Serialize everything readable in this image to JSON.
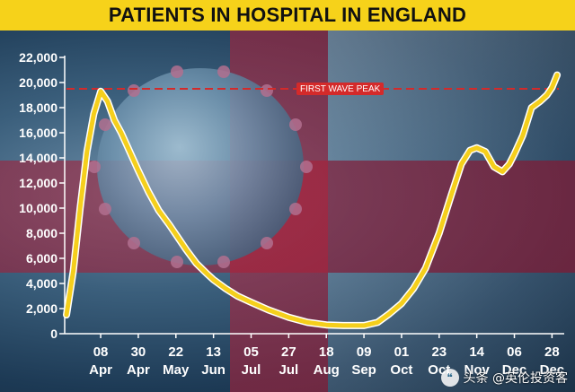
{
  "title": "PATIENTS IN HOSPITAL IN ENGLAND",
  "watermark": {
    "text": "头条 @英伦投资客",
    "icon": "speech-bubble-icon"
  },
  "colors": {
    "title_bg": "#f6d21a",
    "line": "#f5cf1c",
    "line_outline": "#ffffff",
    "peak_line": "#d42a2a",
    "tick_text": "#ffffff"
  },
  "chart_data": {
    "type": "line",
    "title": "PATIENTS IN HOSPITAL IN ENGLAND",
    "ylim": [
      0,
      22000
    ],
    "yticks": [
      0,
      2000,
      4000,
      6000,
      8000,
      10000,
      12000,
      14000,
      16000,
      18000,
      20000,
      22000
    ],
    "ytick_labels": [
      "0",
      "2,000",
      "4,000",
      "6,000",
      "8,000",
      "10,000",
      "12,000",
      "14,000",
      "16,000",
      "18,000",
      "20,000",
      "22,000"
    ],
    "xlim": [
      "2020-03-19",
      "2021-01-01"
    ],
    "xticks": [
      {
        "date": "2020-04-08",
        "day": "08",
        "month": "Apr"
      },
      {
        "date": "2020-04-30",
        "day": "30",
        "month": "Apr"
      },
      {
        "date": "2020-05-22",
        "day": "22",
        "month": "May"
      },
      {
        "date": "2020-06-13",
        "day": "13",
        "month": "Jun"
      },
      {
        "date": "2020-07-05",
        "day": "05",
        "month": "Jul"
      },
      {
        "date": "2020-07-27",
        "day": "27",
        "month": "Jul"
      },
      {
        "date": "2020-08-18",
        "day": "18",
        "month": "Aug"
      },
      {
        "date": "2020-09-09",
        "day": "09",
        "month": "Sep"
      },
      {
        "date": "2020-10-01",
        "day": "01",
        "month": "Oct"
      },
      {
        "date": "2020-10-23",
        "day": "23",
        "month": "Oct"
      },
      {
        "date": "2020-11-14",
        "day": "14",
        "month": "Nov"
      },
      {
        "date": "2020-12-06",
        "day": "06",
        "month": "Dec"
      },
      {
        "date": "2020-12-28",
        "day": "28",
        "month": "Dec"
      }
    ],
    "grid": false,
    "reference_line": {
      "label": "FIRST WAVE PEAK",
      "value": 19500
    },
    "series": [
      {
        "x": [
          "2020-03-19",
          "2020-03-23",
          "2020-03-27",
          "2020-03-31",
          "2020-04-04",
          "2020-04-08",
          "2020-04-12",
          "2020-04-16",
          "2020-04-20",
          "2020-04-25",
          "2020-04-30",
          "2020-05-06",
          "2020-05-12",
          "2020-05-18",
          "2020-05-22",
          "2020-05-28",
          "2020-06-03",
          "2020-06-09",
          "2020-06-13",
          "2020-06-20",
          "2020-06-27",
          "2020-07-05",
          "2020-07-15",
          "2020-07-27",
          "2020-08-07",
          "2020-08-18",
          "2020-08-28",
          "2020-09-09",
          "2020-09-17",
          "2020-09-24",
          "2020-10-01",
          "2020-10-08",
          "2020-10-15",
          "2020-10-23",
          "2020-10-30",
          "2020-11-05",
          "2020-11-10",
          "2020-11-14",
          "2020-11-19",
          "2020-11-24",
          "2020-11-29",
          "2020-12-03",
          "2020-12-06",
          "2020-12-11",
          "2020-12-16",
          "2020-12-21",
          "2020-12-25",
          "2020-12-28",
          "2020-12-31"
        ],
        "y": [
          1500,
          5000,
          10000,
          14500,
          17500,
          19300,
          18500,
          17000,
          16000,
          14500,
          13000,
          11300,
          9800,
          8700,
          7900,
          6700,
          5600,
          4800,
          4300,
          3600,
          3000,
          2500,
          1900,
          1300,
          900,
          700,
          650,
          650,
          900,
          1600,
          2400,
          3600,
          5200,
          8000,
          11000,
          13500,
          14600,
          14800,
          14500,
          13300,
          12900,
          13500,
          14300,
          15800,
          18000,
          18500,
          19000,
          19600,
          20600
        ]
      }
    ]
  }
}
